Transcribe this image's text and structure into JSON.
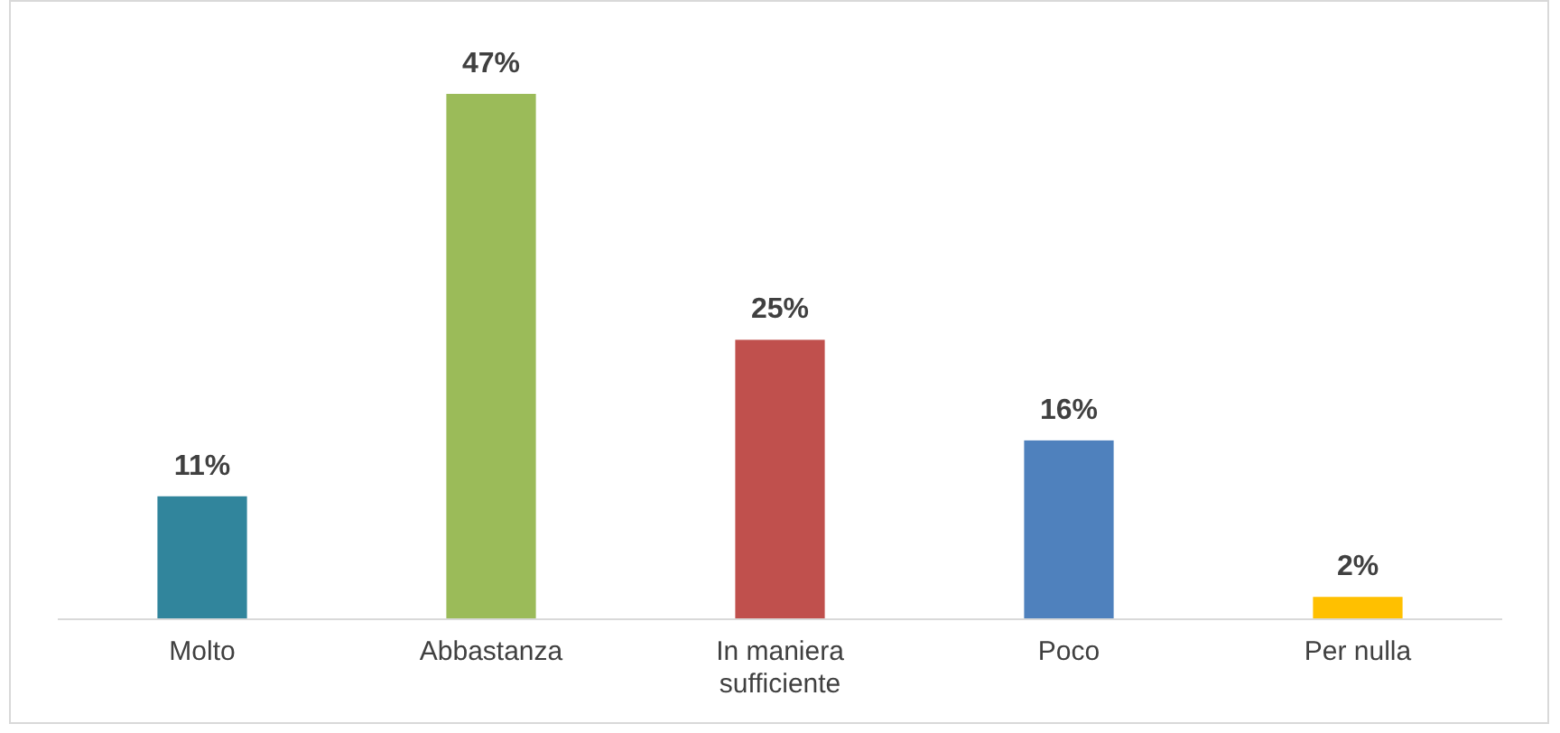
{
  "chart_data": {
    "type": "bar",
    "categories": [
      "Molto",
      "Abbastanza",
      "In maniera sufficiente",
      "Poco",
      "Per nulla"
    ],
    "values": [
      11,
      47,
      25,
      16,
      2
    ],
    "colors": [
      "#31859c",
      "#9bbb59",
      "#c0504d",
      "#4f81bd",
      "#ffc000"
    ],
    "value_labels": [
      "11%",
      "47%",
      "25%",
      "16%",
      "2%"
    ]
  }
}
